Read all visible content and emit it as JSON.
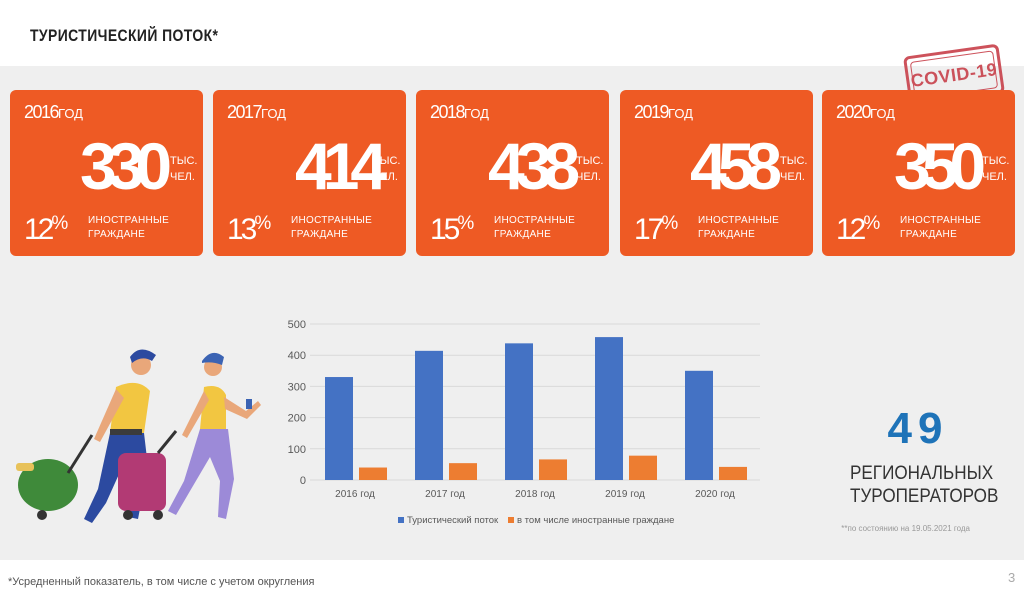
{
  "header": {
    "title": "ТУРИСТИЧЕСКИЙ ПОТОК*"
  },
  "stamp": {
    "label": "COVID-19"
  },
  "cards": [
    {
      "year": "2016",
      "year_suffix": "ГОД",
      "value": "330",
      "unit_line1": "ТЫС.",
      "unit_line2": "ЧЕЛ.",
      "foreign_pct": "12",
      "pct_sign": "%",
      "desc_line1": "ИНОСТРАННЫЕ",
      "desc_line2": "ГРАЖДАНЕ"
    },
    {
      "year": "2017",
      "year_suffix": "ГОД",
      "value": "414",
      "unit_line1": "ТЫС.",
      "unit_line2": "ЧЕЛ.",
      "foreign_pct": "13",
      "pct_sign": "%",
      "desc_line1": "ИНОСТРАННЫЕ",
      "desc_line2": "ГРАЖДАНЕ"
    },
    {
      "year": "2018",
      "year_suffix": "ГОД",
      "value": "438",
      "unit_line1": "ТЫС.",
      "unit_line2": "ЧЕЛ.",
      "foreign_pct": "15",
      "pct_sign": "%",
      "desc_line1": "ИНОСТРАННЫЕ",
      "desc_line2": "ГРАЖДАНЕ"
    },
    {
      "year": "2019",
      "year_suffix": "ГОД",
      "value": "458",
      "unit_line1": "ТЫС.",
      "unit_line2": "ЧЕЛ.",
      "foreign_pct": "17",
      "pct_sign": "%",
      "desc_line1": "ИНОСТРАННЫЕ",
      "desc_line2": "ГРАЖДАНЕ"
    },
    {
      "year": "2020",
      "year_suffix": "ГОД",
      "value": "350",
      "unit_line1": "ТЫС.",
      "unit_line2": "ЧЕЛ.",
      "foreign_pct": "12",
      "pct_sign": "%",
      "desc_line1": "ИНОСТРАННЫЕ",
      "desc_line2": "ГРАЖДАНЕ"
    }
  ],
  "chart_data": {
    "type": "bar",
    "categories": [
      "2016 год",
      "2017 год",
      "2018 год",
      "2019 год",
      "2020 год"
    ],
    "series": [
      {
        "name": "Туристический поток",
        "values": [
          330,
          414,
          438,
          458,
          350
        ],
        "color": "#4472c4"
      },
      {
        "name": "в том числе иностранные граждане",
        "values": [
          40,
          54,
          66,
          78,
          42
        ],
        "color": "#ed7d31"
      }
    ],
    "ylim": [
      0,
      500
    ],
    "yticks": [
      0,
      100,
      200,
      300,
      400,
      500
    ],
    "grid": true,
    "legend": "bottom"
  },
  "operators": {
    "count": "49",
    "line1": "РЕГИОНАЛЬНЫХ",
    "line2": "ТУРОПЕРАТОРОВ",
    "as_of": "**по состоянию на 19.05.2021 года"
  },
  "footnote": "*Усредненный показатель, в том числе с учетом округления",
  "page_number": "3",
  "colors": {
    "card": "#ee5a24",
    "accent_blue": "#1e73b8",
    "band": "#efefef"
  }
}
